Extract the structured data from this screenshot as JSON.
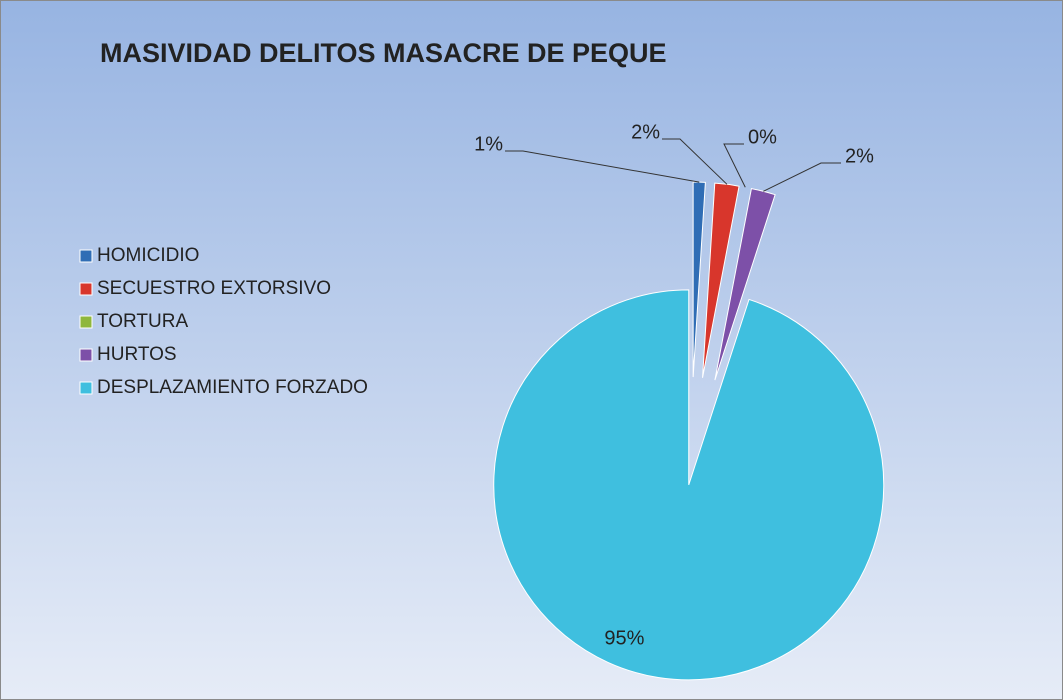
{
  "chart_data": {
    "type": "pie",
    "title": "MASIVIDAD DELITOS MASACRE DE PEQUE",
    "categories": [
      "HOMICIDIO",
      "SECUESTRO EXTORSIVO",
      "TORTURA",
      "HURTOS",
      "DESPLAZAMIENTO FORZADO"
    ],
    "values": [
      1,
      2,
      0,
      2,
      95
    ],
    "value_labels": [
      "1%",
      "2%",
      "0%",
      "2%",
      "95%"
    ],
    "colors": [
      "#2f6db5",
      "#d8362c",
      "#8fb73c",
      "#7d50a8",
      "#3fbfdf"
    ],
    "legend": "left"
  }
}
